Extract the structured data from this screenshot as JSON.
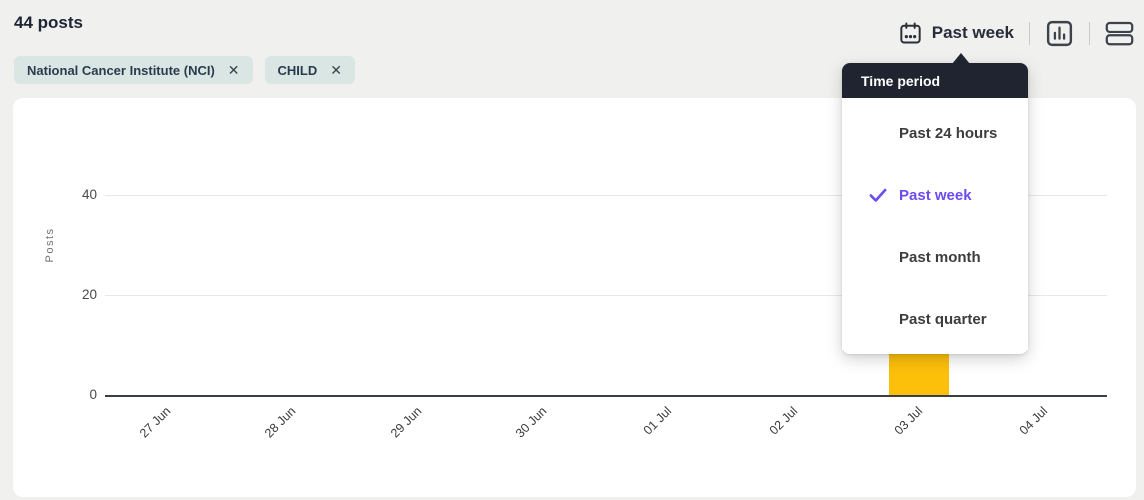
{
  "header": {
    "title": "44 posts",
    "filters": [
      {
        "label": "National Cancer Institute (NCI)"
      },
      {
        "label": "CHILD"
      }
    ]
  },
  "toolbar": {
    "time_period_label": "Past week",
    "icons": [
      "calendar-icon",
      "bar-chart-view-icon",
      "stacked-rows-view-icon"
    ]
  },
  "time_period_menu": {
    "title": "Time period",
    "items": [
      {
        "label": "Past 24 hours",
        "selected": false
      },
      {
        "label": "Past week",
        "selected": true
      },
      {
        "label": "Past month",
        "selected": false
      },
      {
        "label": "Past quarter",
        "selected": false
      }
    ]
  },
  "chart_data": {
    "type": "bar",
    "title": "",
    "xlabel": "",
    "ylabel": "Posts",
    "categories": [
      "27 Jun",
      "28 Jun",
      "29 Jun",
      "30 Jun",
      "01 Jul",
      "02 Jul",
      "03 Jul",
      "04 Jul"
    ],
    "values": [
      0,
      0,
      0,
      0,
      0,
      0,
      44,
      0
    ],
    "yticks": [
      0,
      20,
      40
    ],
    "ylim": [
      0,
      44
    ],
    "grid": "horizontal",
    "legend": "none",
    "bar_color": "#fcc00b"
  },
  "colors": {
    "accent_purple": "#6c4cf1",
    "bar_yellow": "#fcc00b",
    "chip_bg": "#d9e6e3",
    "menu_header_bg": "#1f2430",
    "page_bg": "#f0f0ee",
    "card_bg": "#ffffff",
    "axis_line": "#3a3f44",
    "gridline": "#e8e8e8"
  }
}
